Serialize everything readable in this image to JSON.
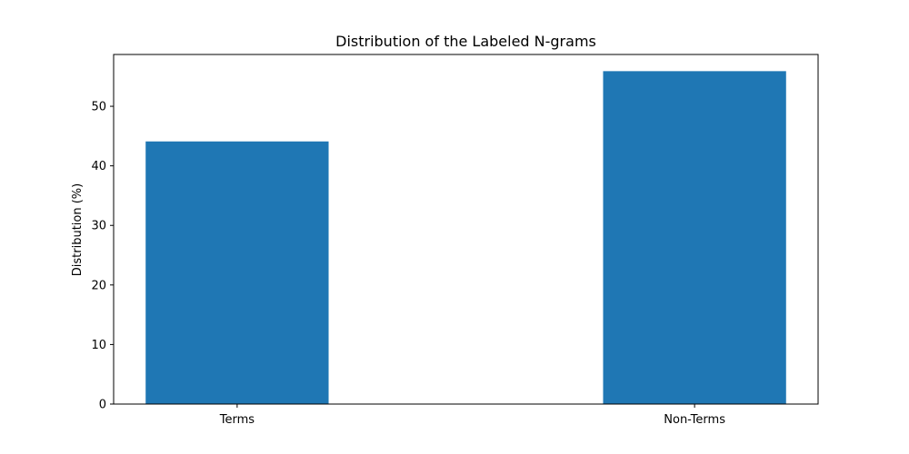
{
  "chart_data": {
    "type": "bar",
    "title": "Distribution of the Labeled N-grams",
    "xlabel": "",
    "ylabel": "Distribution (%)",
    "categories": [
      "Terms",
      "Non-Terms"
    ],
    "values": [
      44.1,
      55.9
    ],
    "ylim": [
      0,
      58.7
    ],
    "yticks": [
      0,
      10,
      20,
      30,
      40,
      50
    ],
    "bar_color": "#1f77b4",
    "grid": false,
    "legend": "none"
  }
}
